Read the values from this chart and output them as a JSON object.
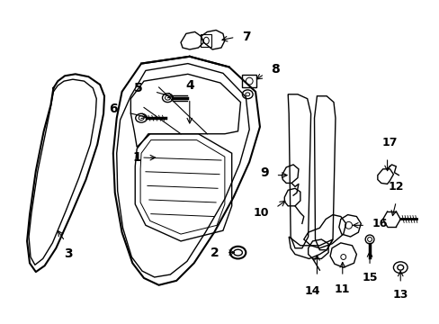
{
  "background_color": "#ffffff",
  "line_color": "#000000",
  "fig_width": 4.89,
  "fig_height": 3.6,
  "dpi": 100,
  "label_fontsize": 9,
  "label_fontsize_small": 8
}
